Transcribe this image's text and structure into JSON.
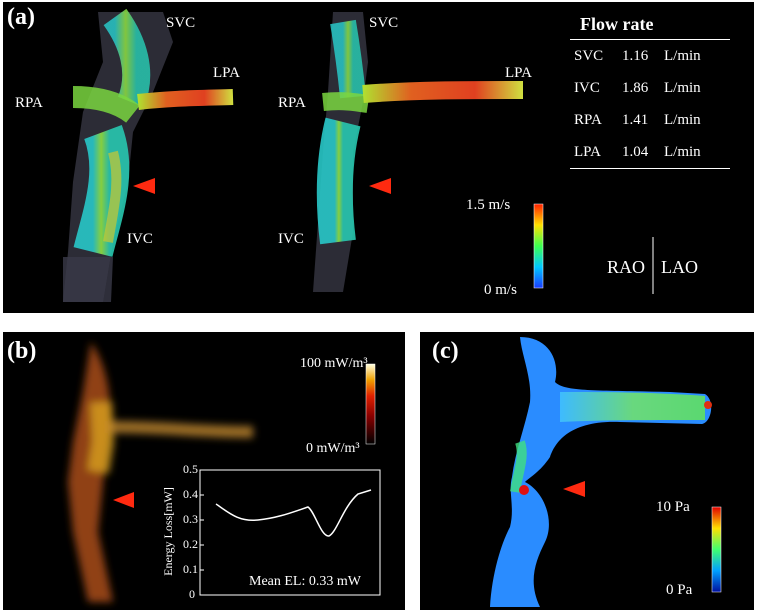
{
  "panel_a": {
    "label": "(a)",
    "vessel_labels": {
      "svc_left": "SVC",
      "svc_right": "SVC",
      "lpa_left": "LPA",
      "lpa_right": "LPA",
      "rpa_left": "RPA",
      "rpa_right": "RPA",
      "ivc_left": "IVC",
      "ivc_right": "IVC"
    },
    "flow_table": {
      "title": "Flow rate",
      "rows": [
        {
          "vessel": "SVC",
          "value": "1.16",
          "unit": "L/min"
        },
        {
          "vessel": "IVC",
          "value": "1.86",
          "unit": "L/min"
        },
        {
          "vessel": "RPA",
          "value": "1.41",
          "unit": "L/min"
        },
        {
          "vessel": "LPA",
          "value": "1.04",
          "unit": "L/min"
        }
      ]
    },
    "colorbar": {
      "max": "1.5 m/s",
      "min": "0 m/s"
    },
    "view_left": "RAO",
    "view_right": "LAO"
  },
  "panel_b": {
    "label": "(b)",
    "colorbar": {
      "max": "100 mW/m³",
      "min": "0 mW/m³"
    },
    "inset": {
      "ylabel": "Energy Loss[mW]",
      "yticks": [
        "0.5",
        "0.4",
        "0.3",
        "0.2",
        "0.1",
        "0"
      ],
      "mean_label": "Mean EL: 0.33 mW"
    }
  },
  "panel_c": {
    "label": "(c)",
    "colorbar": {
      "max": "10 Pa",
      "min": "0 Pa"
    }
  },
  "colors": {
    "arrow": "#ff2a10",
    "background": "#000000"
  }
}
